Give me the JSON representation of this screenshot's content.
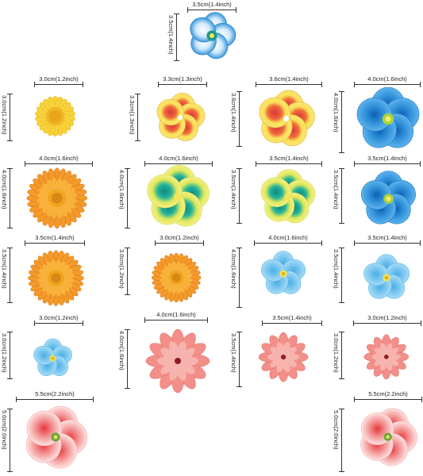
{
  "items": [
    {
      "w": "3.5cm(1.4inch)",
      "h": "3.5cm(1.4inch)",
      "icon": "blue-white-petunia-icon"
    },
    {
      "w": "3.0cm(1.2inch)",
      "h": "3.0cm(1.2inch)",
      "icon": "yellow-daisy-icon"
    },
    {
      "w": "3.3cm(1.3inch)",
      "h": "3.3cm(1.3inch)",
      "icon": "yellow-red-flower-icon"
    },
    {
      "w": "3.6cm(1.4inch)",
      "h": "3.6cm(1.4inch)",
      "icon": "yellow-red-flower-icon"
    },
    {
      "w": "4.0cm(1.6inch)",
      "h": "4.0cm(1.6inch)",
      "icon": "blue-petunia-icon"
    },
    {
      "w": "4.0cm(1.6inch)",
      "h": "4.0cm(1.6inch)",
      "icon": "orange-gerbera-icon"
    },
    {
      "w": "4.0cm(1.6inch)",
      "h": "4.0cm(1.6inch)",
      "icon": "yellow-teal-flower-icon"
    },
    {
      "w": "3.5cm(1.4inch)",
      "h": "3.5cm(1.4inch)",
      "icon": "yellow-teal-flower-icon"
    },
    {
      "w": "3.5cm(1.4inch)",
      "h": "3.5cm(1.4inch)",
      "icon": "blue-petunia-icon"
    },
    {
      "w": "3.5cm(1.4inch)",
      "h": "3.5cm(1.4inch)",
      "icon": "orange-gerbera-icon"
    },
    {
      "w": "3.0cm(1.2inch)",
      "h": "3.0cm(1.2inch)",
      "icon": "orange-gerbera-icon"
    },
    {
      "w": "4.0cm(1.6inch)",
      "h": "4.0cm(1.6inch)",
      "icon": "light-blue-flower-icon"
    },
    {
      "w": "3.5cm(1.4inch)",
      "h": "3.5cm(1.4inch)",
      "icon": "light-blue-flower-icon"
    },
    {
      "w": "3.0cm(1.2inch)",
      "h": "3.0cm(1.2inch)",
      "icon": "light-blue-flower-icon"
    },
    {
      "w": "4.0cm(1.6inch)",
      "h": "4.0cm(1.6inch)",
      "icon": "pink-daisy-icon"
    },
    {
      "w": "3.5cm(1.4inch)",
      "h": "3.5cm(1.4inch)",
      "icon": "pink-daisy-icon"
    },
    {
      "w": "3.0cm(1.2inch)",
      "h": "3.0cm(1.2inch)",
      "icon": "pink-daisy-icon"
    },
    {
      "w": "5.5cm(2.2inch)",
      "h": "5.0cm(2.0inch)",
      "icon": "pink-hibiscus-icon"
    },
    {
      "w": "5.5cm(2.2inch)",
      "h": "5.0cm(2.0inch)",
      "icon": "pink-hibiscus-icon"
    }
  ],
  "colors": {
    "blue": "#2f8fd8",
    "light_blue": "#7cc6ec",
    "yellow": "#f7d53a",
    "orange": "#f09a2a",
    "red": "#d9423a",
    "teal": "#1aa59a",
    "pink": "#f08a8a",
    "green": "#86b83a"
  }
}
